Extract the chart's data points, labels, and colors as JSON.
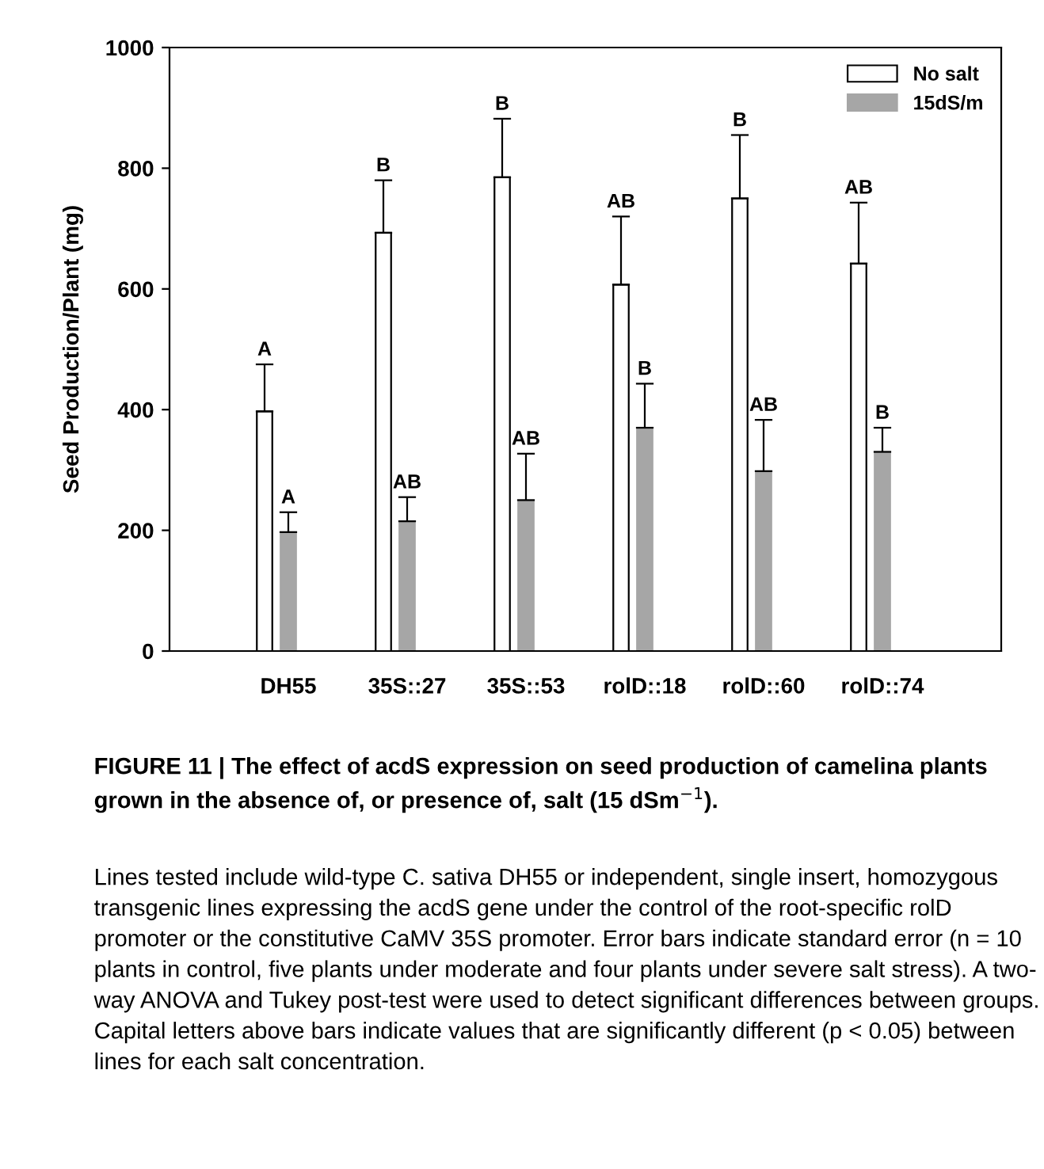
{
  "chart_data": {
    "type": "bar",
    "ylabel": "Seed Production/Plant (mg)",
    "categories": [
      "DH55",
      "35S::27",
      "35S::53",
      "rolD::18",
      "rolD::60",
      "rolD::74"
    ],
    "series": [
      {
        "name": "No salt",
        "color": "#ffffff",
        "values": [
          397,
          693,
          785,
          607,
          750,
          642
        ],
        "errors": [
          [
            397,
            475
          ],
          [
            693,
            780
          ],
          [
            785,
            882
          ],
          [
            607,
            720
          ],
          [
            750,
            855
          ],
          [
            642,
            743
          ]
        ]
      },
      {
        "name": "15dS/m",
        "color": "#a6a6a6",
        "values": [
          197,
          215,
          250,
          370,
          298,
          330
        ],
        "errors": [
          [
            197,
            230
          ],
          [
            215,
            255
          ],
          [
            250,
            327
          ],
          [
            370,
            443
          ],
          [
            298,
            383
          ],
          [
            330,
            370
          ]
        ]
      }
    ],
    "ylim": [
      0,
      1000
    ],
    "yticks": [
      0,
      200,
      400,
      600,
      800,
      1000
    ],
    "grid": false,
    "legend": "top right",
    "annotations": [
      "A",
      "B",
      "B",
      "AB",
      "B",
      "AB",
      "A",
      "AB",
      "AB",
      "B",
      "AB",
      "B",
      "FIGURE 11 | The effect of acdS expression on seed production of camelina plants grown in the absence of, or presence of, salt (15 dSm$^{−1}$).",
      "Lines tested include wild-type C. sativa DH55 or independent, single insert, homozygous transgenic lines expressing the acdS gene under the control of the root-specific rolD promoter or the constitutive CaMV 35S promoter. Error bars indicate standard error (n = 10 plants in control, five plants under moderate and four plants under severe salt stress). A two- way ANOVA and Tukey post-test were used to detect significant differences between groups. Capital letters above bars indicate values that are significantly different (p < 0.05) between lines for each salt concentration."
    ]
  }
}
